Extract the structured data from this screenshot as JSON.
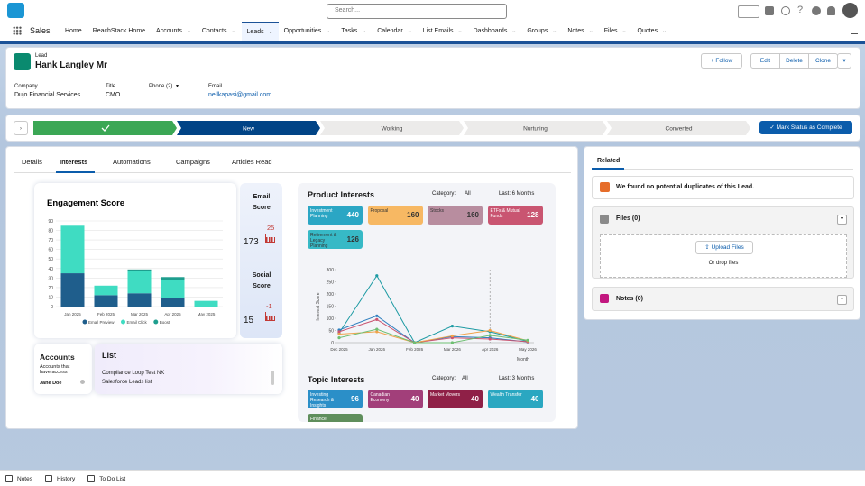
{
  "top_bar": {
    "search_placeholder": "Search..."
  },
  "nav": {
    "app_name": "Sales",
    "items": [
      "Home",
      "ReachStack Home",
      "Accounts",
      "Contacts",
      "Leads",
      "Opportunities",
      "Tasks",
      "Calendar",
      "List Emails",
      "Dashboards",
      "Groups",
      "Notes",
      "Files",
      "Quotes"
    ],
    "active": 4
  },
  "record": {
    "object": "Lead",
    "name": "Hank Langley Mr",
    "follow": "Follow",
    "actions": [
      "Edit",
      "Delete",
      "Clone"
    ],
    "fields": [
      {
        "label": "Company",
        "value": "Dujo Financial Services"
      },
      {
        "label": "Title",
        "value": "CMO"
      },
      {
        "label": "Phone (2)"
      },
      {
        "label": "Email",
        "value": "neilkapasi@gmail.com"
      }
    ]
  },
  "path": {
    "steps": [
      "New",
      "Working",
      "Nurturing",
      "Converted"
    ],
    "current": 0,
    "button": "Mark Status as Complete"
  },
  "tabs": {
    "items": [
      "Details",
      "Interests",
      "Automations",
      "Campaigns",
      "Articles Read"
    ],
    "active": 1
  },
  "scores": [
    {
      "label": "Email Score",
      "value": 173,
      "change": 25
    },
    {
      "label": "Social Score",
      "value": 15,
      "change": -1
    }
  ],
  "accounts": {
    "title": "Accounts",
    "description": "Accounts that have access",
    "item": "Jane Doe"
  },
  "list": {
    "title": "List",
    "items": [
      "Compliance Loop Test NK",
      "Salesforce Leads list"
    ]
  },
  "product_interests": {
    "category_label": "Category:",
    "category": "All",
    "period": "Last: 6 Months",
    "tiles": [
      {
        "label": "Investment Planning",
        "value": 440,
        "color": "#2ba6c4"
      },
      {
        "label": "Proposal",
        "value": 160,
        "color": "#f7b863"
      },
      {
        "label": "Stocks",
        "value": 160,
        "color": "#b88d9f"
      },
      {
        "label": "ETFs & Mutual Funds",
        "value": 128,
        "color": "#c95571"
      },
      {
        "label": "Retirement & Legacy Planning",
        "value": 126,
        "color": "#37b9c6"
      }
    ]
  },
  "topic_interests": {
    "title": "Topic Interests",
    "category_label": "Category:",
    "category": "All",
    "period": "Last: 3 Months",
    "tiles": [
      {
        "label": "Investing Research & Insights",
        "value": 96,
        "color": "#2b8fc8"
      },
      {
        "label": "Canadian Economy",
        "value": 40,
        "color": "#a23f7a"
      },
      {
        "label": "Market Movers",
        "value": 40,
        "color": "#8f2047"
      },
      {
        "label": "Wealth Transfer",
        "value": 40,
        "color": "#2aa7c1"
      },
      {
        "label": "Finance",
        "color": "#5f8e5c"
      }
    ]
  },
  "related": {
    "title": "Related",
    "duplicates": "We found no potential duplicates of this Lead.",
    "files": "Files (0)",
    "upload": "Upload Files",
    "drop": "Or drop files",
    "notes": "Notes (0)"
  },
  "utility_bar": [
    "Notes",
    "History",
    "To Do List"
  ],
  "chart_data": [
    {
      "type": "bar",
      "stacked": true,
      "title": "Engagement Score",
      "categories": [
        "Jan 2025",
        "Feb 2025",
        "Mar 2025",
        "Apr 2025",
        "May 2025"
      ],
      "series": [
        {
          "name": "Email Preview",
          "color": "#1f5e8c",
          "values": [
            35,
            12,
            14,
            9,
            0
          ]
        },
        {
          "name": "Email Click",
          "color": "#3fdcc2",
          "values": [
            50,
            10,
            23,
            19,
            6
          ]
        },
        {
          "name": "Boost",
          "color": "#1e9e8e",
          "values": [
            0,
            0,
            2,
            3,
            0
          ]
        }
      ],
      "ylim": [
        0,
        90
      ],
      "yticks": [
        0,
        10,
        20,
        30,
        40,
        50,
        60,
        70,
        80,
        90
      ],
      "grid": true,
      "legend": "bottom"
    },
    {
      "type": "line",
      "title": "Product Interests",
      "y_label": "Interest Score",
      "x_label": "Month",
      "categories": [
        "Dec 2025",
        "Jan 2026",
        "Feb 2026",
        "Mar 2026",
        "Apr 2026",
        "May 2026"
      ],
      "series": [
        {
          "color": "#1c9aa3",
          "values": [
            40,
            275,
            0,
            68,
            45,
            5
          ]
        },
        {
          "color": "#2f7fbf",
          "values": [
            52,
            110,
            0,
            25,
            20,
            3
          ]
        },
        {
          "color": "#c95571",
          "values": [
            45,
            95,
            0,
            20,
            15,
            4
          ]
        },
        {
          "color": "#f0a24a",
          "values": [
            35,
            45,
            0,
            28,
            50,
            8
          ]
        },
        {
          "color": "#6fbf73",
          "values": [
            20,
            55,
            0,
            0,
            30,
            10
          ]
        }
      ],
      "ylim": [
        0,
        300
      ],
      "yticks": [
        0,
        50,
        100,
        150,
        200,
        250,
        300
      ],
      "grid": false,
      "marker_line": 4
    }
  ]
}
